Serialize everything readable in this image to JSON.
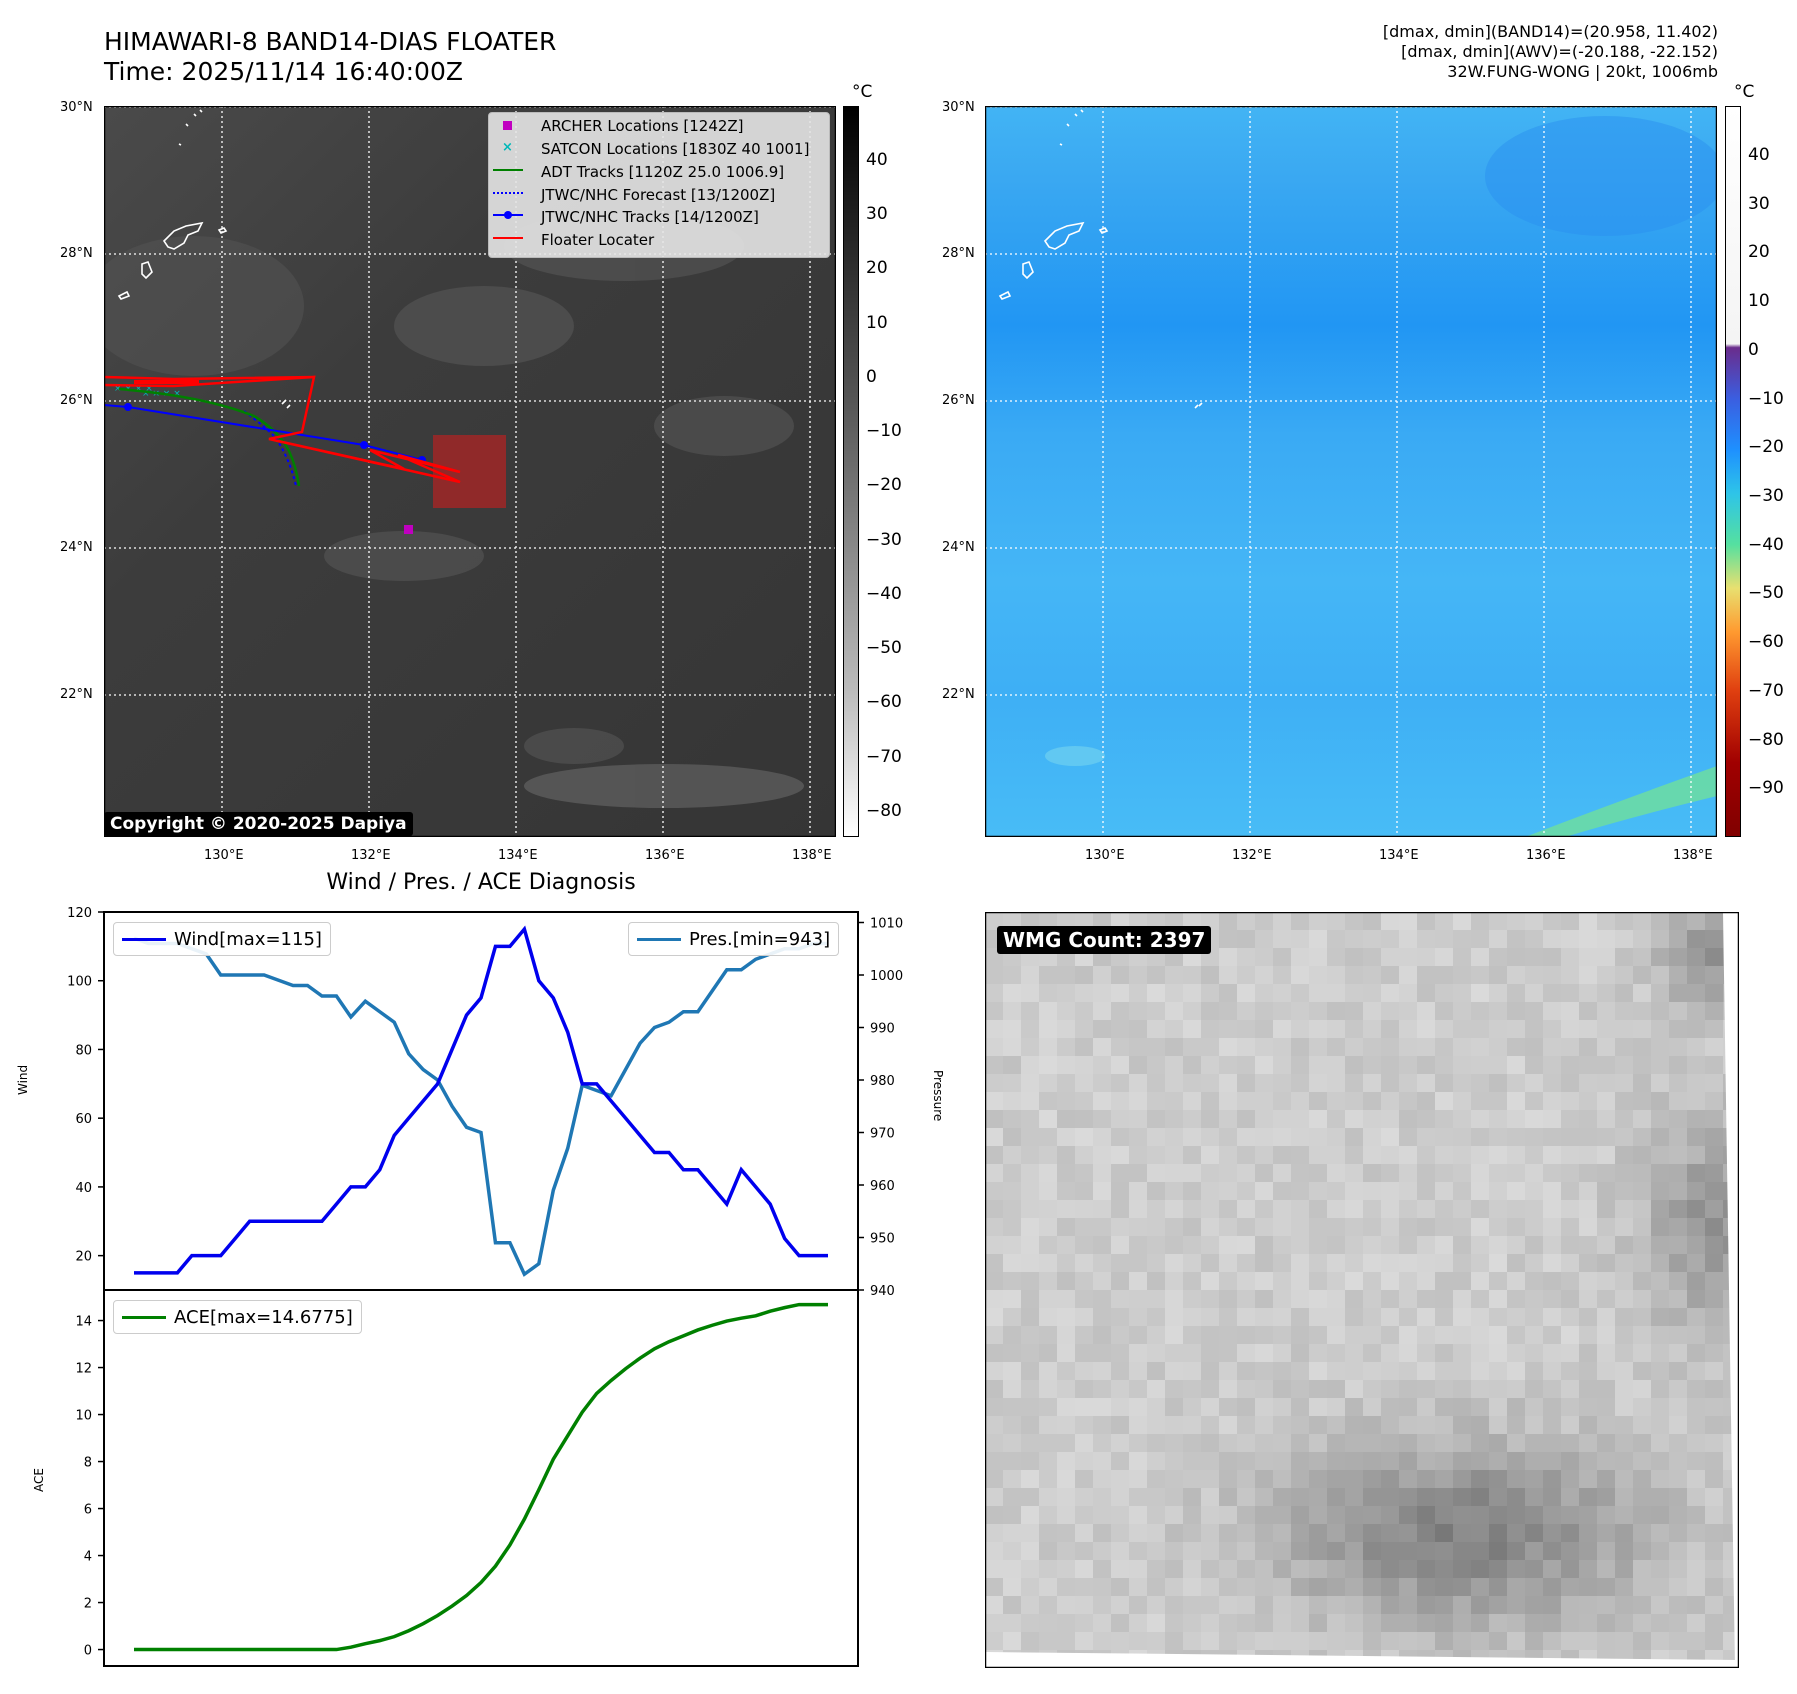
{
  "header": {
    "title_line1": "HIMAWARI-8 BAND14-DIAS FLOATER",
    "title_line2": "Time: 2025/11/14 16:40:00Z",
    "info_line1": "[dmax, dmin](BAND14)=(20.958, 11.402)",
    "info_line2": "[dmax, dmin](AWV)=(-20.188, -22.152)",
    "info_line3": "32W.FUNG-WONG | 20kt, 1006mb"
  },
  "maps": {
    "lat_labels": [
      "30°N",
      "28°N",
      "26°N",
      "24°N",
      "22°N"
    ],
    "lon_labels": [
      "130°E",
      "132°E",
      "134°E",
      "136°E",
      "138°E"
    ],
    "colorbar_unit": "°C",
    "left_colorbar_ticks": [
      "40",
      "30",
      "20",
      "10",
      "0",
      "−10",
      "−20",
      "−30",
      "−40",
      "−50",
      "−60",
      "−70",
      "−80"
    ],
    "right_colorbar_ticks": [
      "40",
      "30",
      "20",
      "10",
      "0",
      "−10",
      "−20",
      "−30",
      "−40",
      "−50",
      "−60",
      "−70",
      "−80",
      "−90"
    ],
    "copyright": "Copyright © 2020-2025 Dapiya",
    "legend": [
      {
        "label": "ARCHER Locations [1242Z]",
        "color": "#c000c0"
      },
      {
        "label": "SATCON Locations [1830Z 40 1001]",
        "color": "#00b8b8"
      },
      {
        "label": "ADT Tracks [1120Z 25.0 1006.9]",
        "color": "#008000"
      },
      {
        "label": "JTWC/NHC Forecast [13/1200Z]",
        "color": "#0000ff"
      },
      {
        "label": "JTWC/NHC Tracks [14/1200Z]",
        "color": "#0000ff"
      },
      {
        "label": "Floater Locater",
        "color": "#ff0000"
      }
    ]
  },
  "diagnosis": {
    "title": "Wind / Pres. / ACE Diagnosis",
    "wind_legend": "Wind[max=115]",
    "pres_legend": "Pres.[min=943]",
    "ace_legend": "ACE[max=14.6775]",
    "wind_ylabel": "Wind",
    "pres_ylabel": "Pressure",
    "ace_ylabel": "ACE",
    "wmg_count": "WMG Count: 2397"
  },
  "chart_data": [
    {
      "type": "line",
      "title": "Wind / Pres. / ACE Diagnosis",
      "ylabel": "Wind",
      "ylim": [
        10,
        120
      ],
      "yticks": [
        20,
        40,
        60,
        80,
        100,
        120
      ],
      "series": [
        {
          "name": "Wind[max=115]",
          "color": "#0000ee",
          "values": [
            15,
            15,
            15,
            15,
            20,
            20,
            20,
            25,
            30,
            30,
            30,
            30,
            30,
            30,
            35,
            40,
            40,
            45,
            55,
            60,
            65,
            70,
            80,
            90,
            95,
            110,
            110,
            115,
            100,
            95,
            85,
            70,
            70,
            65,
            60,
            55,
            50,
            50,
            45,
            45,
            40,
            35,
            45,
            40,
            35,
            25,
            20,
            20,
            20
          ]
        }
      ]
    },
    {
      "type": "line",
      "ylabel": "Pressure",
      "ylim": [
        940,
        1012
      ],
      "yticks": [
        940,
        950,
        960,
        970,
        980,
        990,
        1000,
        1010
      ],
      "series": [
        {
          "name": "Pres.[min=943]",
          "color": "#1f77b4",
          "values": [
            1007,
            1006,
            1006,
            1006,
            1005,
            1004,
            1000,
            1000,
            1000,
            1000,
            999,
            998,
            998,
            996,
            996,
            992,
            995,
            993,
            991,
            985,
            982,
            980,
            975,
            971,
            970,
            949,
            949,
            943,
            945,
            959,
            967,
            979,
            978,
            977,
            982,
            987,
            990,
            991,
            993,
            993,
            997,
            1001,
            1001,
            1003,
            1004,
            1005,
            1005,
            1006,
            1006
          ]
        }
      ]
    },
    {
      "type": "line",
      "ylabel": "ACE",
      "ylim": [
        -0.7,
        15.3
      ],
      "yticks": [
        0,
        2,
        4,
        6,
        8,
        10,
        12,
        14
      ],
      "series": [
        {
          "name": "ACE[max=14.6775]",
          "color": "#008000",
          "values": [
            0,
            0,
            0,
            0,
            0,
            0,
            0,
            0,
            0,
            0,
            0,
            0,
            0,
            0,
            0,
            0.1,
            0.25,
            0.38,
            0.55,
            0.8,
            1.1,
            1.45,
            1.85,
            2.3,
            2.85,
            3.55,
            4.45,
            5.55,
            6.8,
            8.1,
            9.1,
            10.1,
            10.9,
            11.45,
            11.95,
            12.4,
            12.8,
            13.1,
            13.35,
            13.6,
            13.8,
            13.98,
            14.1,
            14.2,
            14.4,
            14.55,
            14.68,
            14.68,
            14.68
          ]
        }
      ]
    }
  ]
}
